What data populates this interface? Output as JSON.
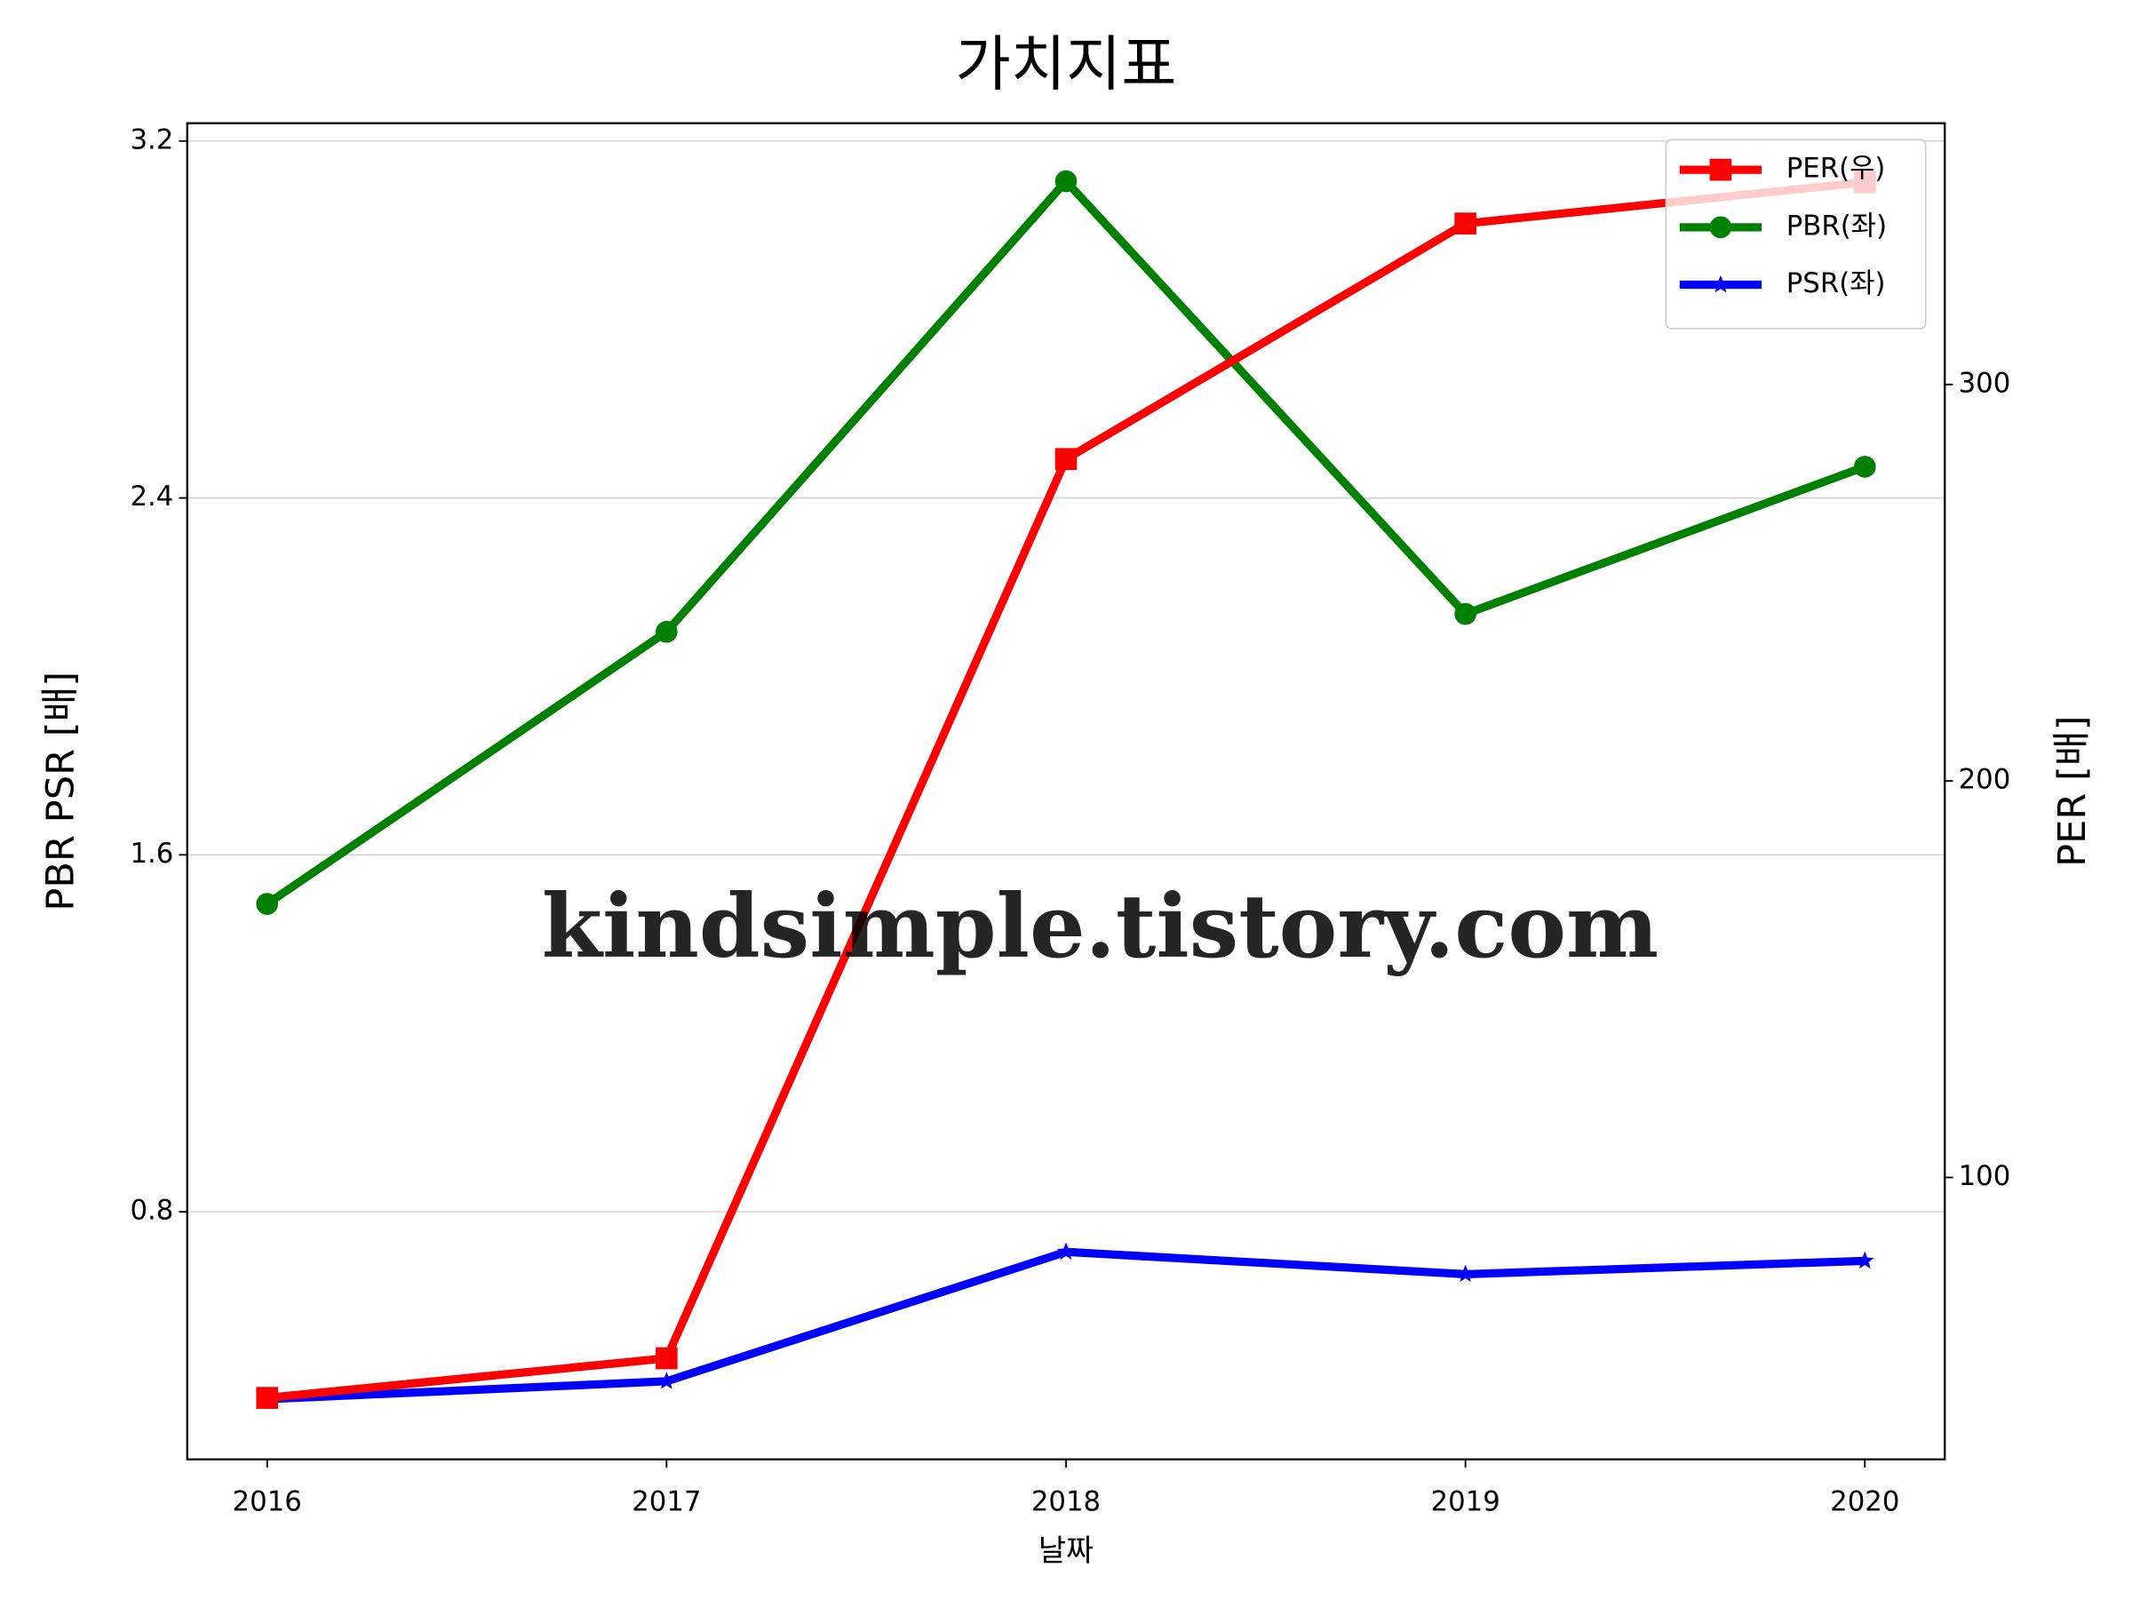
{
  "chart_data": {
    "type": "line",
    "title": "가치지표",
    "xlabel": "날짜",
    "ylabel": "PBR PSR [배]",
    "y2label": "PER [배]",
    "watermark": "kindsimple.tistory.com",
    "categories": [
      "2016",
      "2017",
      "2018",
      "2019",
      "2020"
    ],
    "series": [
      {
        "name": "PER(우)",
        "color": "#ff0000",
        "marker": "square",
        "axis": "y2",
        "values": [
          44.4,
          54.4,
          281.2,
          340.6,
          351.0
        ]
      },
      {
        "name": "PBR(좌)",
        "color": "#008000",
        "marker": "circle",
        "values": [
          1.49,
          2.1,
          3.11,
          2.14,
          2.47
        ]
      },
      {
        "name": "PSR(좌)",
        "color": "#0000ff",
        "marker": "star",
        "values": [
          0.38,
          0.42,
          0.71,
          0.66,
          0.69
        ]
      }
    ],
    "ylim": [
      0.245,
      3.24
    ],
    "yticks": [
      0.8,
      1.6,
      2.4,
      3.2
    ],
    "y2lim": [
      28.9,
      365.9
    ],
    "y2ticks": [
      100,
      200,
      300
    ],
    "grid": true,
    "legend": "upper right"
  }
}
